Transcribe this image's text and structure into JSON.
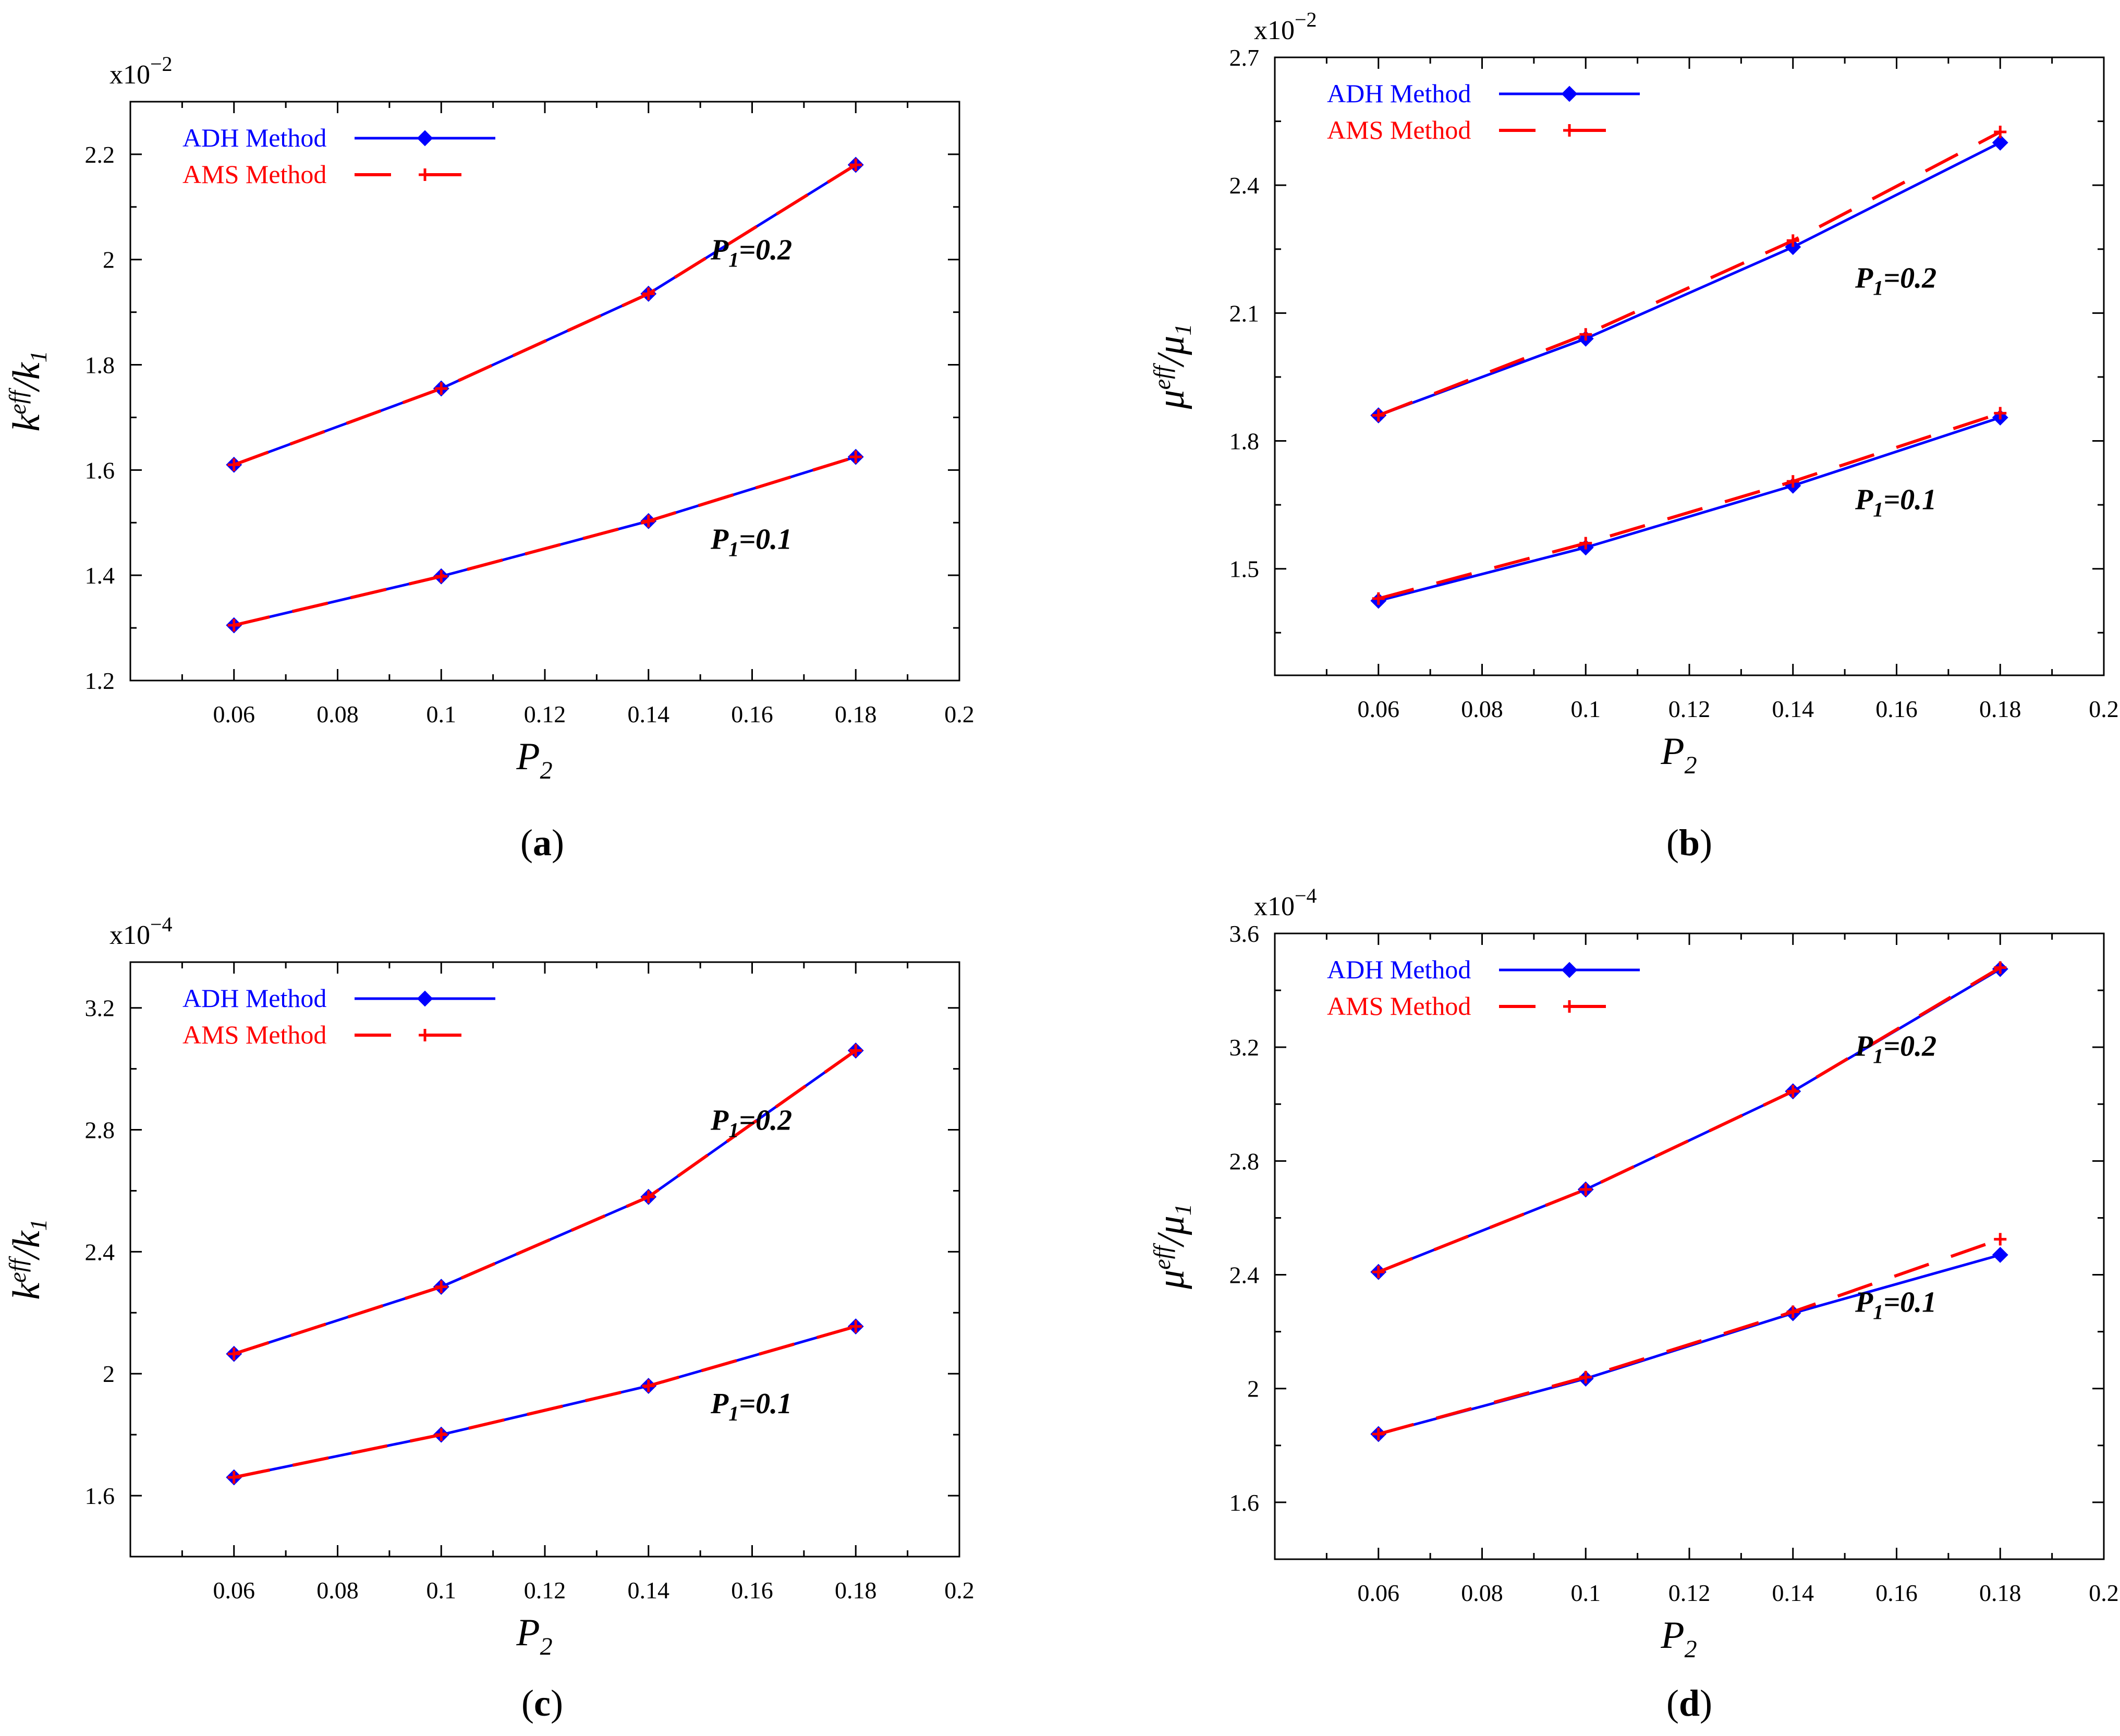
{
  "chart_data": [
    {
      "id": "a",
      "type": "line",
      "caption": "a",
      "multiplier": "x10",
      "exponent": "−2",
      "y_base": "k",
      "y_sup": "eff",
      "y_den_base": "k",
      "y_den_sub": "1",
      "xlabel_base": "P",
      "xlabel_sub": "2",
      "xlim": [
        0.04,
        0.2
      ],
      "ylim": [
        1.2,
        2.3
      ],
      "xticks": [
        0.06,
        0.08,
        0.1,
        0.12,
        0.14,
        0.16,
        0.18,
        0.2
      ],
      "xtick_labels": [
        "0.06",
        "0.08",
        "0.1",
        "0.12",
        "0.14",
        "0.16",
        "0.18",
        "0.2"
      ],
      "yticks": [
        1.2,
        1.4,
        1.6,
        1.8,
        2.0,
        2.2
      ],
      "ytick_labels": [
        "1.2",
        "1.4",
        "1.6",
        "1.8",
        "2",
        "2.2"
      ],
      "x": [
        0.06,
        0.1,
        0.14,
        0.18
      ],
      "series": [
        {
          "name": "ADH Method",
          "group": "P1=0.2",
          "color": "#0000ff",
          "style": "solid",
          "marker": "diamond",
          "values": [
            1.61,
            1.755,
            1.935,
            2.18
          ]
        },
        {
          "name": "AMS Method",
          "group": "P1=0.2",
          "color": "#ff0000",
          "style": "dashed",
          "marker": "plus",
          "values": [
            1.61,
            1.755,
            1.935,
            2.18
          ]
        },
        {
          "name": "ADH Method",
          "group": "P1=0.1",
          "color": "#0000ff",
          "style": "solid",
          "marker": "diamond",
          "values": [
            1.305,
            1.398,
            1.503,
            1.625
          ]
        },
        {
          "name": "AMS Method",
          "group": "P1=0.1",
          "color": "#ff0000",
          "style": "dashed",
          "marker": "plus",
          "values": [
            1.305,
            1.398,
            1.503,
            1.625
          ]
        }
      ],
      "legend": [
        "ADH Method",
        "AMS Method"
      ],
      "annotations": [
        {
          "base": "P",
          "sub": "1",
          "rest": "=0.2",
          "x": 0.152,
          "y": 2.0
        },
        {
          "base": "P",
          "sub": "1",
          "rest": "=0.1",
          "x": 0.152,
          "y": 1.45
        }
      ]
    },
    {
      "id": "b",
      "type": "line",
      "caption": "b",
      "multiplier": "x10",
      "exponent": "−2",
      "y_base": "μ",
      "y_sup": "eff",
      "y_den_base": "μ",
      "y_den_sub": "1",
      "xlabel_base": "P",
      "xlabel_sub": "2",
      "xlim": [
        0.04,
        0.2
      ],
      "ylim": [
        1.25,
        2.7
      ],
      "xticks": [
        0.06,
        0.08,
        0.1,
        0.12,
        0.14,
        0.16,
        0.18,
        0.2
      ],
      "xtick_labels": [
        "0.06",
        "0.08",
        "0.1",
        "0.12",
        "0.14",
        "0.16",
        "0.18",
        "0.2"
      ],
      "yticks": [
        1.5,
        1.8,
        2.1,
        2.4,
        2.7
      ],
      "ytick_labels": [
        "1.5",
        "1.8",
        "2.1",
        "2.4",
        "2.7"
      ],
      "x": [
        0.06,
        0.1,
        0.14,
        0.18
      ],
      "series": [
        {
          "name": "ADH Method",
          "group": "P1=0.2",
          "color": "#0000ff",
          "style": "solid",
          "marker": "diamond",
          "values": [
            1.86,
            2.04,
            2.255,
            2.5
          ]
        },
        {
          "name": "AMS Method",
          "group": "P1=0.2",
          "color": "#ff0000",
          "style": "dashed",
          "marker": "plus",
          "values": [
            1.86,
            2.05,
            2.27,
            2.525
          ]
        },
        {
          "name": "ADH Method",
          "group": "P1=0.1",
          "color": "#0000ff",
          "style": "solid",
          "marker": "diamond",
          "values": [
            1.425,
            1.55,
            1.695,
            1.855
          ]
        },
        {
          "name": "AMS Method",
          "group": "P1=0.1",
          "color": "#ff0000",
          "style": "dashed",
          "marker": "plus",
          "values": [
            1.43,
            1.56,
            1.705,
            1.865
          ]
        }
      ],
      "legend": [
        "ADH Method",
        "AMS Method"
      ],
      "annotations": [
        {
          "base": "P",
          "sub": "1",
          "rest": "=0.2",
          "x": 0.152,
          "y": 2.16
        },
        {
          "base": "P",
          "sub": "1",
          "rest": "=0.1",
          "x": 0.152,
          "y": 1.64
        }
      ]
    },
    {
      "id": "c",
      "type": "line",
      "caption": "c",
      "multiplier": "x10",
      "exponent": "−4",
      "y_base": "k",
      "y_sup": "eff",
      "y_den_base": "k",
      "y_den_sub": "1",
      "xlabel_base": "P",
      "xlabel_sub": "2",
      "xlim": [
        0.04,
        0.2
      ],
      "ylim": [
        1.4,
        3.35
      ],
      "xticks": [
        0.06,
        0.08,
        0.1,
        0.12,
        0.14,
        0.16,
        0.18,
        0.2
      ],
      "xtick_labels": [
        "0.06",
        "0.08",
        "0.1",
        "0.12",
        "0.14",
        "0.16",
        "0.18",
        "0.2"
      ],
      "yticks": [
        1.6,
        2.0,
        2.4,
        2.8,
        3.2
      ],
      "ytick_labels": [
        "1.6",
        "2",
        "2.4",
        "2.8",
        "3.2"
      ],
      "x": [
        0.06,
        0.1,
        0.14,
        0.18
      ],
      "series": [
        {
          "name": "ADH Method",
          "group": "P1=0.2",
          "color": "#0000ff",
          "style": "solid",
          "marker": "diamond",
          "values": [
            2.065,
            2.285,
            2.58,
            3.06
          ]
        },
        {
          "name": "AMS Method",
          "group": "P1=0.2",
          "color": "#ff0000",
          "style": "dashed",
          "marker": "plus",
          "values": [
            2.065,
            2.285,
            2.58,
            3.06
          ]
        },
        {
          "name": "ADH Method",
          "group": "P1=0.1",
          "color": "#0000ff",
          "style": "solid",
          "marker": "diamond",
          "values": [
            1.66,
            1.8,
            1.96,
            2.155
          ]
        },
        {
          "name": "AMS Method",
          "group": "P1=0.1",
          "color": "#ff0000",
          "style": "dashed",
          "marker": "plus",
          "values": [
            1.66,
            1.8,
            1.96,
            2.155
          ]
        }
      ],
      "legend": [
        "ADH Method",
        "AMS Method"
      ],
      "annotations": [
        {
          "base": "P",
          "sub": "1",
          "rest": "=0.2",
          "x": 0.152,
          "y": 2.8
        },
        {
          "base": "P",
          "sub": "1",
          "rest": "=0.1",
          "x": 0.152,
          "y": 1.87
        }
      ]
    },
    {
      "id": "d",
      "type": "line",
      "caption": "d",
      "multiplier": "x10",
      "exponent": "−4",
      "y_base": "μ",
      "y_sup": "eff",
      "y_den_base": "μ",
      "y_den_sub": "1",
      "xlabel_base": "P",
      "xlabel_sub": "2",
      "xlim": [
        0.04,
        0.2
      ],
      "ylim": [
        1.4,
        3.6
      ],
      "xticks": [
        0.06,
        0.08,
        0.1,
        0.12,
        0.14,
        0.16,
        0.18,
        0.2
      ],
      "xtick_labels": [
        "0.06",
        "0.08",
        "0.1",
        "0.12",
        "0.14",
        "0.16",
        "0.18",
        "0.2"
      ],
      "yticks": [
        1.6,
        2.0,
        2.4,
        2.8,
        3.2,
        3.6
      ],
      "ytick_labels": [
        "1.6",
        "2",
        "2.4",
        "2.8",
        "3.2",
        "3.6"
      ],
      "x": [
        0.06,
        0.1,
        0.14,
        0.18
      ],
      "series": [
        {
          "name": "ADH Method",
          "group": "P1=0.2",
          "color": "#0000ff",
          "style": "solid",
          "marker": "diamond",
          "values": [
            2.41,
            2.7,
            3.045,
            3.475
          ]
        },
        {
          "name": "AMS Method",
          "group": "P1=0.2",
          "color": "#ff0000",
          "style": "dashed",
          "marker": "plus",
          "values": [
            2.41,
            2.7,
            3.045,
            3.48
          ]
        },
        {
          "name": "ADH Method",
          "group": "P1=0.1",
          "color": "#0000ff",
          "style": "solid",
          "marker": "diamond",
          "values": [
            1.84,
            2.035,
            2.265,
            2.47
          ]
        },
        {
          "name": "AMS Method",
          "group": "P1=0.1",
          "color": "#ff0000",
          "style": "dashed",
          "marker": "plus",
          "values": [
            1.84,
            2.04,
            2.27,
            2.525
          ]
        }
      ],
      "legend": [
        "ADH Method",
        "AMS Method"
      ],
      "annotations": [
        {
          "base": "P",
          "sub": "1",
          "rest": "=0.2",
          "x": 0.152,
          "y": 3.17
        },
        {
          "base": "P",
          "sub": "1",
          "rest": "=0.1",
          "x": 0.152,
          "y": 2.27
        }
      ]
    }
  ]
}
